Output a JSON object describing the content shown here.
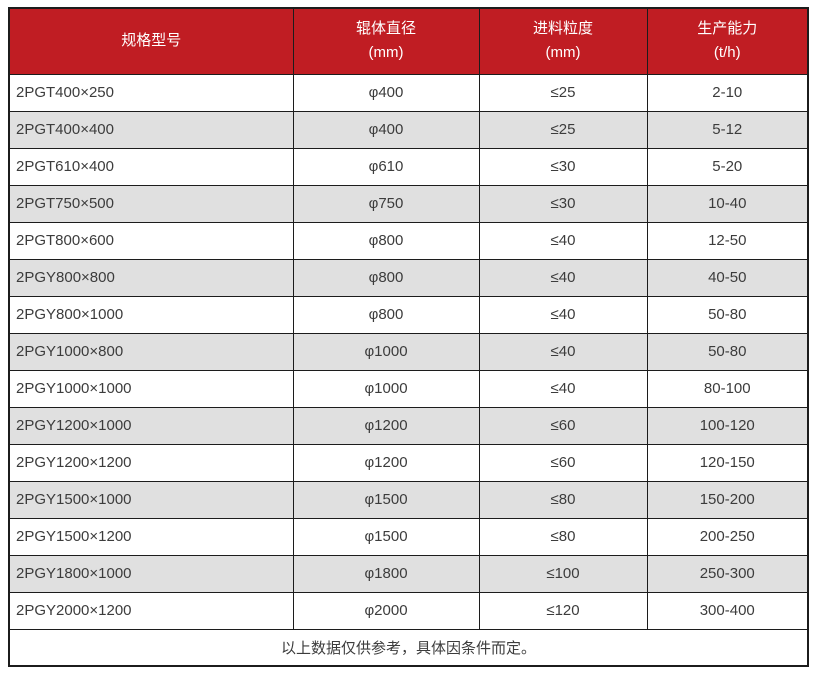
{
  "colors": {
    "header_bg": "#c01d23",
    "header_text": "#ffffff",
    "body_text": "#3c3c3c",
    "stripe_row_bg": "#e0e0e0",
    "border": "#1c1c1c",
    "page_bg": "#ffffff"
  },
  "table": {
    "headers": [
      {
        "title": "规格型号",
        "unit": ""
      },
      {
        "title": "辊体直径",
        "unit": "(mm)"
      },
      {
        "title": "进料粒度",
        "unit": "(mm)"
      },
      {
        "title": "生产能力",
        "unit": "(t/h)"
      }
    ],
    "rows": [
      {
        "model": "2PGT400×250",
        "diameter": "φ400",
        "feed": "≤25",
        "capacity": "2-10"
      },
      {
        "model": "2PGT400×400",
        "diameter": "φ400",
        "feed": "≤25",
        "capacity": "5-12"
      },
      {
        "model": "2PGT610×400",
        "diameter": "φ610",
        "feed": "≤30",
        "capacity": "5-20"
      },
      {
        "model": "2PGT750×500",
        "diameter": "φ750",
        "feed": "≤30",
        "capacity": "10-40"
      },
      {
        "model": "2PGT800×600",
        "diameter": "φ800",
        "feed": "≤40",
        "capacity": "12-50"
      },
      {
        "model": "2PGY800×800",
        "diameter": "φ800",
        "feed": "≤40",
        "capacity": "40-50"
      },
      {
        "model": "2PGY800×1000",
        "diameter": "φ800",
        "feed": "≤40",
        "capacity": "50-80"
      },
      {
        "model": "2PGY1000×800",
        "diameter": "φ1000",
        "feed": "≤40",
        "capacity": "50-80"
      },
      {
        "model": "2PGY1000×1000",
        "diameter": "φ1000",
        "feed": "≤40",
        "capacity": "80-100"
      },
      {
        "model": "2PGY1200×1000",
        "diameter": "φ1200",
        "feed": "≤60",
        "capacity": "100-120"
      },
      {
        "model": "2PGY1200×1200",
        "diameter": "φ1200",
        "feed": "≤60",
        "capacity": "120-150"
      },
      {
        "model": "2PGY1500×1000",
        "diameter": "φ1500",
        "feed": "≤80",
        "capacity": "150-200"
      },
      {
        "model": "2PGY1500×1200",
        "diameter": "φ1500",
        "feed": "≤80",
        "capacity": "200-250"
      },
      {
        "model": "2PGY1800×1000",
        "diameter": "φ1800",
        "feed": "≤100",
        "capacity": "250-300"
      },
      {
        "model": "2PGY2000×1200",
        "diameter": "φ2000",
        "feed": "≤120",
        "capacity": "300-400"
      }
    ],
    "footer_note": "以上数据仅供参考，具体因条件而定。"
  }
}
